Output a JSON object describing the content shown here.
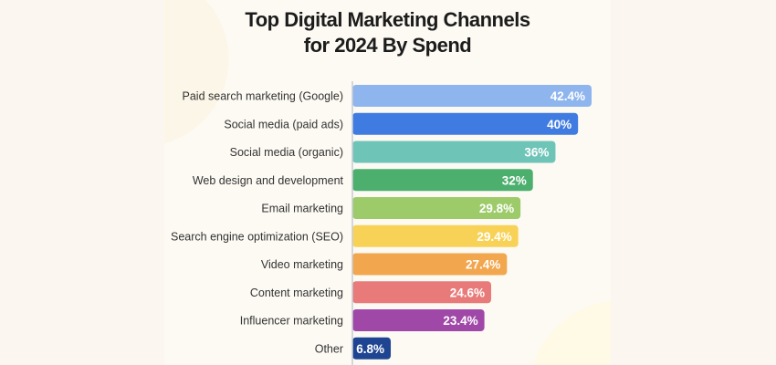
{
  "chart_data": {
    "type": "bar",
    "orientation": "horizontal",
    "title_lines": [
      "Top Digital Marketing Channels",
      "for 2024 By Spend"
    ],
    "categories": [
      "Paid search marketing (Google)",
      "Social media (paid ads)",
      "Social media (organic)",
      "Web design and development",
      "Email marketing",
      "Search engine optimization (SEO)",
      "Video marketing",
      "Content marketing",
      "Influencer marketing",
      "Other"
    ],
    "values": [
      42.4,
      40,
      36,
      32,
      29.8,
      29.4,
      27.4,
      24.6,
      23.4,
      6.8
    ],
    "data_labels": [
      "42.4%",
      "40%",
      "36%",
      "32%",
      "29.8%",
      "29.4%",
      "27.4%",
      "24.6%",
      "23.4%",
      "6.8%"
    ],
    "colors": [
      "#8fb5ef",
      "#3f7be0",
      "#6fc4b8",
      "#4caf6d",
      "#9dcb6a",
      "#f8d257",
      "#f2a64d",
      "#e87b7a",
      "#a048a8",
      "#1f4592"
    ],
    "unit": "%",
    "xlim": [
      0,
      42.4
    ],
    "grid": false,
    "legend": "none"
  }
}
